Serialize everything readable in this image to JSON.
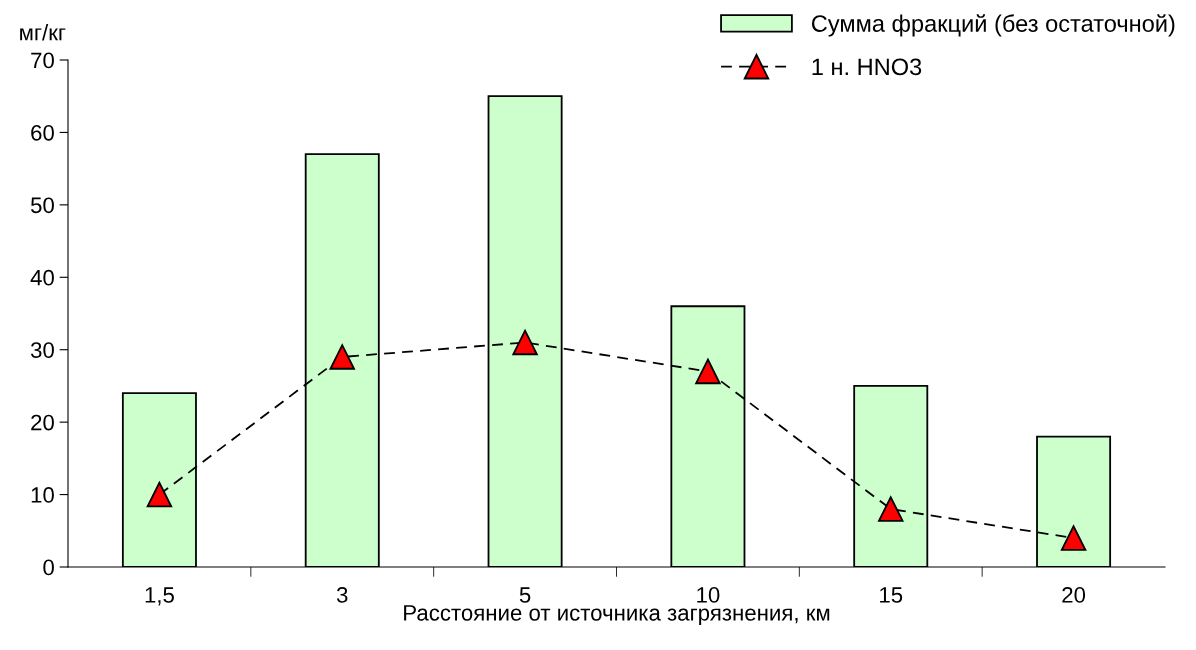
{
  "chart_data": {
    "type": "bar",
    "xlabel": "Расстояние от источника загрязнения, км",
    "ylabel": "мг/кг",
    "categories": [
      "1,5",
      "3",
      "5",
      "10",
      "15",
      "20"
    ],
    "series": [
      {
        "name": "Сумма фракций (без остаточной)",
        "color": "#ccffcc",
        "values": [
          24,
          57,
          65,
          36,
          25,
          18
        ]
      },
      {
        "name": "1 н. HNO3",
        "type": "line",
        "color": "#ff0000",
        "marker": "triangle",
        "line_style": "dashed",
        "values": [
          10,
          29,
          31,
          27,
          8,
          4
        ]
      }
    ],
    "ylim": [
      0,
      70
    ],
    "yticks": [
      0,
      10,
      20,
      30,
      40,
      50,
      60,
      70
    ],
    "grid": false,
    "legend": "top right"
  }
}
